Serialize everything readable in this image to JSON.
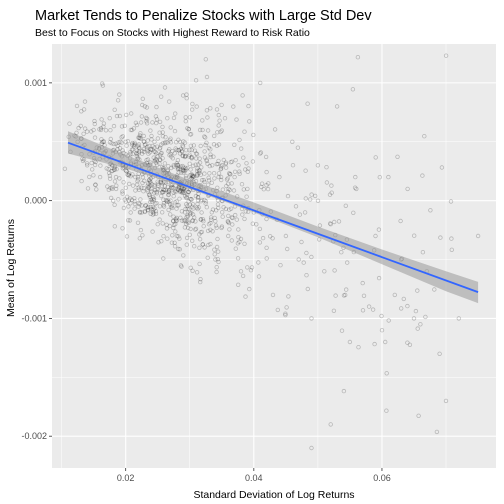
{
  "chart_data": {
    "type": "scatter",
    "title": "Market Tends to Penalize Stocks with Large Std Dev",
    "subtitle": "Best to Focus on Stocks with Highest Reward to Risk Ratio",
    "xlabel": "Standard Deviation of Log Returns",
    "ylabel": "Mean of Log Returns",
    "xlim": [
      0.0085,
      0.0778
    ],
    "ylim": [
      -0.00227,
      0.00133
    ],
    "x_ticks": [
      0.02,
      0.04,
      0.06
    ],
    "x_tick_labels": [
      "0.02",
      "0.04",
      "0.06"
    ],
    "y_ticks": [
      -0.002,
      -0.001,
      0.0,
      0.001
    ],
    "y_tick_labels": [
      "-0.002",
      "-0.001",
      "0.000",
      "0.001"
    ],
    "grid": true,
    "points_description": "approx. 1000 semi-transparent grey points, densest around std dev 0.02-0.035 and mean 0.0000-0.0005",
    "sampled_points": [
      [
        0.0125,
        0.0005
      ],
      [
        0.0135,
        0.00035
      ],
      [
        0.014,
        0.0003
      ],
      [
        0.015,
        0.0006
      ],
      [
        0.0155,
        0.00045
      ],
      [
        0.016,
        0.0002
      ],
      [
        0.0165,
        0.0005
      ],
      [
        0.017,
        0.00035
      ],
      [
        0.0175,
        0.0007
      ],
      [
        0.018,
        0.0004
      ],
      [
        0.0185,
        0.0001
      ],
      [
        0.019,
        0.0009
      ],
      [
        0.0195,
        0.0003
      ],
      [
        0.02,
        0.0005
      ],
      [
        0.0205,
        0.0
      ],
      [
        0.021,
        0.0006
      ],
      [
        0.0215,
        0.0002
      ],
      [
        0.022,
        0.0004
      ],
      [
        0.0225,
        -0.0001
      ],
      [
        0.023,
        0.0008
      ],
      [
        0.0235,
        0.0003
      ],
      [
        0.024,
        0.0001
      ],
      [
        0.0245,
        0.0005
      ],
      [
        0.025,
        -0.0002
      ],
      [
        0.0255,
        0.0004
      ],
      [
        0.026,
        0.0002
      ],
      [
        0.0265,
        0.0007
      ],
      [
        0.027,
        0.0
      ],
      [
        0.0275,
        0.0003
      ],
      [
        0.028,
        -0.0003
      ],
      [
        0.0285,
        0.0005
      ],
      [
        0.029,
        0.0001
      ],
      [
        0.0295,
        0.0009
      ],
      [
        0.03,
        -0.0001
      ],
      [
        0.0305,
        0.0002
      ],
      [
        0.031,
        0.0004
      ],
      [
        0.0315,
        -0.0004
      ],
      [
        0.032,
        0.0006
      ],
      [
        0.0325,
        0.0001
      ],
      [
        0.033,
        -0.0002
      ],
      [
        0.0335,
        0.0003
      ],
      [
        0.034,
        -0.0005
      ],
      [
        0.0345,
        0.0002
      ],
      [
        0.035,
        0.0
      ],
      [
        0.0355,
        0.0007
      ],
      [
        0.036,
        -0.0003
      ],
      [
        0.037,
        0.0002
      ],
      [
        0.038,
        -0.0006
      ],
      [
        0.039,
        0.0001
      ],
      [
        0.04,
        -0.0001
      ],
      [
        0.041,
        0.0004
      ],
      [
        0.042,
        -0.0004
      ],
      [
        0.043,
        -0.0008
      ],
      [
        0.044,
        0.0002
      ],
      [
        0.045,
        -0.0003
      ],
      [
        0.046,
        0.0005
      ],
      [
        0.047,
        -0.0005
      ],
      [
        0.048,
        -0.0001
      ],
      [
        0.049,
        -0.001
      ],
      [
        0.05,
        0.0003
      ],
      [
        0.051,
        -0.0006
      ],
      [
        0.052,
        -0.0002
      ],
      [
        0.053,
        0.0008
      ],
      [
        0.054,
        -0.0004
      ],
      [
        0.055,
        -0.0012
      ],
      [
        0.056,
        0.0001
      ],
      [
        0.057,
        -0.0007
      ],
      [
        0.058,
        -0.0009
      ],
      [
        0.059,
        -0.0003
      ],
      [
        0.06,
        -0.0011
      ],
      [
        0.061,
        0.0002
      ],
      [
        0.062,
        -0.0008
      ],
      [
        0.063,
        -0.0005
      ],
      [
        0.064,
        0.0001
      ],
      [
        0.065,
        -0.001
      ],
      [
        0.067,
        -0.0006
      ],
      [
        0.069,
        -0.0013
      ],
      [
        0.07,
        -0.0017
      ],
      [
        0.072,
        -0.001
      ],
      [
        0.075,
        -0.0003
      ],
      [
        0.0325,
        0.0012
      ],
      [
        0.041,
        0.001
      ],
      [
        0.0605,
        -0.0012
      ],
      [
        0.052,
        -0.0019
      ],
      [
        0.049,
        -0.0021
      ]
    ],
    "series": [
      {
        "type": "smooth",
        "x": [
          0.011,
          0.075
        ],
        "y": [
          0.000492,
          -0.000777
        ]
      }
    ],
    "confidence_band": {
      "x": [
        0.011,
        0.02,
        0.03,
        0.04,
        0.05,
        0.06,
        0.07,
        0.075
      ],
      "lower": [
        0.0004,
        0.000273,
        0.0001,
        -0.0001,
        -0.00031,
        -0.00054,
        -0.00077,
        -0.00087
      ],
      "upper": [
        0.00059,
        0.000388,
        0.000175,
        -1.5e-05,
        -0.00022,
        -0.000415,
        -0.0006,
        -0.00069
      ]
    },
    "colors": {
      "panel_background": "#ebebeb",
      "grid_major": "#ffffff",
      "points": "#000000",
      "trend_line": "#3366ff",
      "band": "#999999"
    }
  }
}
